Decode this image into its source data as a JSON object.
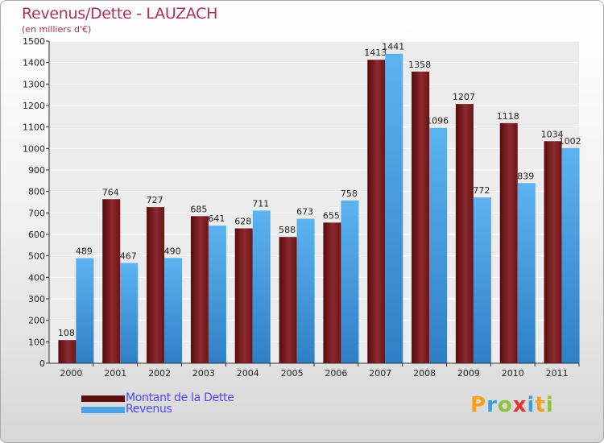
{
  "header": {
    "title": "Revenus/Dette - LAUZACH",
    "subtitle": "(en milliers d'€)"
  },
  "chart_data": {
    "type": "bar",
    "title": "Revenus/Dette - LAUZACH",
    "ylabel": "(en milliers d'€)",
    "xlabel": "",
    "categories": [
      "2000",
      "2001",
      "2002",
      "2003",
      "2004",
      "2005",
      "2006",
      "2007",
      "2008",
      "2009",
      "2010",
      "2011"
    ],
    "ylim": [
      0,
      1500
    ],
    "yticks": [
      0,
      100,
      200,
      300,
      400,
      500,
      600,
      700,
      800,
      900,
      1000,
      1100,
      1200,
      1300,
      1400,
      1500
    ],
    "grid": true,
    "legend_position": "bottom-left",
    "series": [
      {
        "name": "Montant de la Dette",
        "color": "#7a1e22",
        "values": [
          108,
          764,
          727,
          685,
          628,
          588,
          655,
          1413,
          1358,
          1207,
          1118,
          1034
        ]
      },
      {
        "name": "Revenus",
        "color": "#4aa3e6",
        "values": [
          489,
          467,
          490,
          641,
          711,
          673,
          758,
          1441,
          1096,
          772,
          839,
          1002
        ]
      }
    ]
  },
  "legend": {
    "items": [
      {
        "label": "Montant de la Dette",
        "color": "#5e0d10"
      },
      {
        "label": "Revenus",
        "color": "#4aa3e6"
      }
    ]
  },
  "logo": {
    "text": "Proxiti",
    "letters": [
      {
        "ch": "P",
        "color": "#f2a21b"
      },
      {
        "ch": "r",
        "color": "#3c9fd8"
      },
      {
        "ch": "o",
        "color": "#8cc43c"
      },
      {
        "ch": "x",
        "color": "#e8332a"
      },
      {
        "ch": "i",
        "color": "#3c9fd8"
      },
      {
        "ch": "t",
        "color": "#f2a21b"
      },
      {
        "ch": "i",
        "color": "#8cc43c"
      }
    ]
  }
}
